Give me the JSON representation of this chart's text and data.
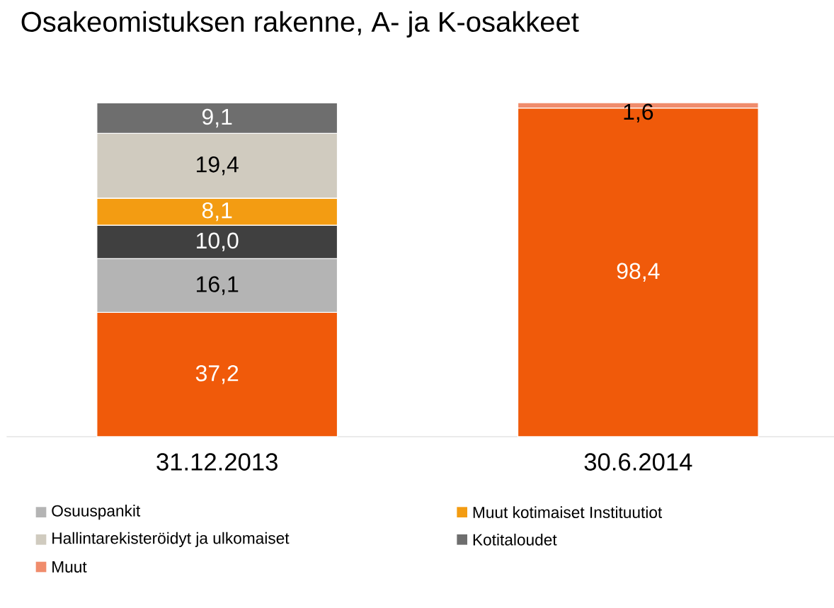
{
  "chart_data": {
    "type": "bar",
    "title": "Osakeomistuksen rakenne, A- ja K-osakkeet",
    "categories": [
      "31.12.2013",
      "30.6.2014"
    ],
    "stacked": true,
    "legend": "bottom",
    "series": [
      {
        "color": "#f05a0a",
        "values": [
          37.2,
          98.4
        ],
        "value_labels": [
          "37,2",
          "98,4"
        ]
      },
      {
        "name": "Osuuspankit",
        "color": "#b4b4b4",
        "values": [
          16.1,
          null
        ],
        "value_labels": [
          "16,1",
          null
        ]
      },
      {
        "color": "#404040",
        "values": [
          10.0,
          null
        ],
        "value_labels": [
          "10,0",
          null
        ]
      },
      {
        "name": "Muut kotimaiset Instituutiot",
        "color": "#f39c12",
        "values": [
          8.1,
          null
        ],
        "value_labels": [
          "8,1",
          null
        ]
      },
      {
        "name": "Hallintarekisteröidyt ja ulkomaiset",
        "color": "#d0cbbf",
        "values": [
          19.4,
          null
        ],
        "value_labels": [
          "19,4",
          null
        ]
      },
      {
        "name": "Kotitaloudet",
        "color": "#6e6e6e",
        "values": [
          9.1,
          null
        ],
        "value_labels": [
          "9,1",
          null
        ]
      },
      {
        "name": "Muut",
        "color": "#f08c6c",
        "values": [
          null,
          1.6
        ],
        "value_labels": [
          null,
          "1,6"
        ]
      }
    ]
  }
}
